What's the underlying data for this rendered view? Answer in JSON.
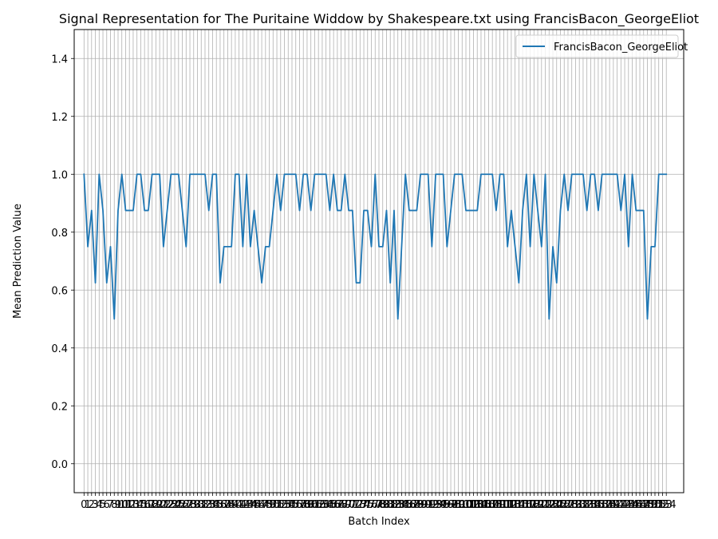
{
  "chart_data": {
    "type": "line",
    "title": "Signal Representation for The Puritaine Widdow by Shakespeare.txt using FrancisBacon_GeorgeEliot",
    "xlabel": "Batch Index",
    "ylabel": "Mean Prediction Value",
    "xlim": [
      -2.6,
      158.6
    ],
    "ylim": [
      -0.1,
      1.5
    ],
    "yticks": [
      0.0,
      0.2,
      0.4,
      0.6,
      0.8,
      1.0,
      1.2,
      1.4
    ],
    "grid": true,
    "legend_position": "top-right",
    "colors": {
      "series": "#1f77b4",
      "grid": "#b0b0b0"
    },
    "series": [
      {
        "name": "FrancisBacon_GeorgeEliot",
        "x_start": 0,
        "values": [
          1.0,
          0.75,
          0.875,
          0.625,
          1.0,
          0.875,
          0.625,
          0.75,
          0.5,
          0.875,
          1.0,
          0.875,
          0.875,
          0.875,
          1.0,
          1.0,
          0.875,
          0.875,
          1.0,
          1.0,
          1.0,
          0.75,
          0.875,
          1.0,
          1.0,
          1.0,
          0.875,
          0.75,
          1.0,
          1.0,
          1.0,
          1.0,
          1.0,
          0.875,
          1.0,
          1.0,
          0.625,
          0.75,
          0.75,
          0.75,
          1.0,
          1.0,
          0.75,
          1.0,
          0.75,
          0.875,
          0.75,
          0.625,
          0.75,
          0.75,
          0.875,
          1.0,
          0.875,
          1.0,
          1.0,
          1.0,
          1.0,
          0.875,
          1.0,
          1.0,
          0.875,
          1.0,
          1.0,
          1.0,
          1.0,
          0.875,
          1.0,
          0.875,
          0.875,
          1.0,
          0.875,
          0.875,
          0.625,
          0.625,
          0.875,
          0.875,
          0.75,
          1.0,
          0.75,
          0.75,
          0.875,
          0.625,
          0.875,
          0.5,
          0.75,
          1.0,
          0.875,
          0.875,
          0.875,
          1.0,
          1.0,
          1.0,
          0.75,
          1.0,
          1.0,
          1.0,
          0.75,
          0.875,
          1.0,
          1.0,
          1.0,
          0.875,
          0.875,
          0.875,
          0.875,
          1.0,
          1.0,
          1.0,
          1.0,
          0.875,
          1.0,
          1.0,
          0.75,
          0.875,
          0.75,
          0.625,
          0.875,
          1.0,
          0.75,
          1.0,
          0.875,
          0.75,
          1.0,
          0.5,
          0.75,
          0.625,
          0.875,
          1.0,
          0.875,
          1.0,
          1.0,
          1.0,
          1.0,
          0.875,
          1.0,
          1.0,
          0.875,
          1.0,
          1.0,
          1.0,
          1.0,
          1.0,
          0.875,
          1.0,
          0.75,
          1.0,
          0.875,
          0.875,
          0.875,
          0.5,
          0.75,
          0.75,
          1.0,
          1.0,
          1.0
        ]
      }
    ]
  }
}
